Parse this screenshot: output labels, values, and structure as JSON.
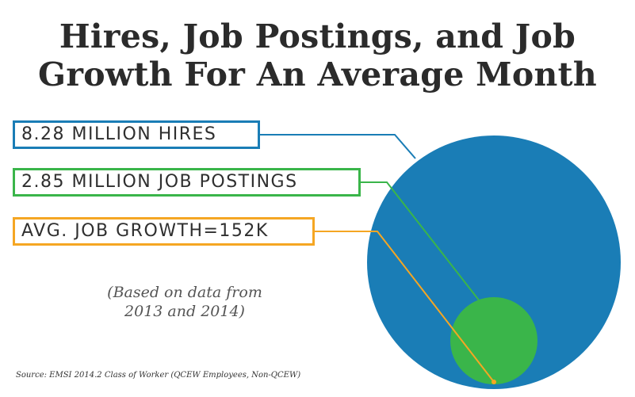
{
  "chart_data": {
    "type": "proportional-circles",
    "title_lines": [
      "Hires, Job Postings, and Job",
      "Growth For An Average Month"
    ],
    "items": [
      {
        "key": "hires",
        "label": "8.28 MILLION HIRES",
        "value": 8280000,
        "color": "#1a7db6"
      },
      {
        "key": "postings",
        "label": "2.85 MILLION JOB POSTINGS",
        "value": 2850000,
        "color": "#3ab54a"
      },
      {
        "key": "growth",
        "label": "AVG. JOB GROWTH=152K",
        "value": 152000,
        "color": "#f5a623"
      }
    ],
    "note_lines": [
      "(Based on data from",
      "2013 and 2014)"
    ],
    "source": "Source: EMSI 2014.2 Class of Worker (QCEW Employees, Non-QCEW)"
  }
}
